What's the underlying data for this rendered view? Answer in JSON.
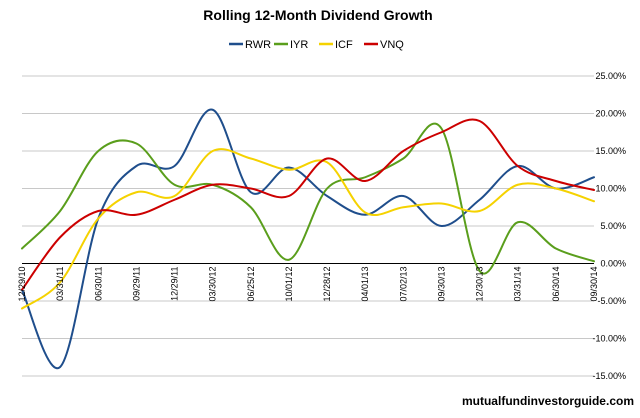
{
  "chart_data": {
    "type": "line",
    "title": "Rolling 12-Month Dividend Growth",
    "xlabel": "",
    "ylabel": "",
    "x": [
      "12/29/10",
      "03/31/11",
      "06/30/11",
      "09/29/11",
      "12/29/11",
      "03/30/12",
      "06/25/12",
      "10/01/12",
      "12/28/12",
      "04/01/13",
      "07/02/13",
      "09/30/13",
      "12/30/13",
      "03/31/14",
      "06/30/14",
      "09/30/14"
    ],
    "ylim": [
      -15,
      25
    ],
    "y_ticks": [
      {
        "value": 25,
        "label": "25.00%"
      },
      {
        "value": 20,
        "label": "20.00%"
      },
      {
        "value": 15,
        "label": "15.00%"
      },
      {
        "value": 10,
        "label": "10.00%"
      },
      {
        "value": 5,
        "label": "5.00%"
      },
      {
        "value": 0,
        "label": "0.00%"
      },
      {
        "value": -5,
        "label": "-5.00%"
      },
      {
        "value": -10,
        "label": "-10.00%"
      },
      {
        "value": -15,
        "label": "-15.00%"
      }
    ],
    "grid": true,
    "legend_position": "top",
    "series": [
      {
        "name": "RWR",
        "color": "#1f4e8c",
        "values": [
          -3.5,
          -13.8,
          6.0,
          13.0,
          13.0,
          20.5,
          9.5,
          12.8,
          9.0,
          6.5,
          9.0,
          5.0,
          8.5,
          13.0,
          10.0,
          11.5
        ]
      },
      {
        "name": "IYR",
        "color": "#5a9e1c",
        "values": [
          2.0,
          7.0,
          15.0,
          16.0,
          10.5,
          10.5,
          7.5,
          0.5,
          10.0,
          11.5,
          14.0,
          18.0,
          -1.0,
          5.5,
          2.0,
          0.3
        ]
      },
      {
        "name": "ICF",
        "color": "#f5d200",
        "values": [
          -6.0,
          -2.5,
          6.0,
          9.5,
          9.0,
          15.0,
          14.0,
          12.5,
          13.5,
          6.8,
          7.5,
          8.0,
          7.0,
          10.5,
          10.0,
          8.3
        ]
      },
      {
        "name": "VNQ",
        "color": "#cc0000",
        "values": [
          -3.5,
          3.5,
          7.0,
          6.5,
          8.5,
          10.5,
          10.0,
          9.0,
          14.0,
          11.0,
          15.0,
          17.5,
          19.0,
          13.0,
          11.0,
          9.8
        ]
      }
    ]
  },
  "watermark": "mutualfundinvestorguide.com"
}
